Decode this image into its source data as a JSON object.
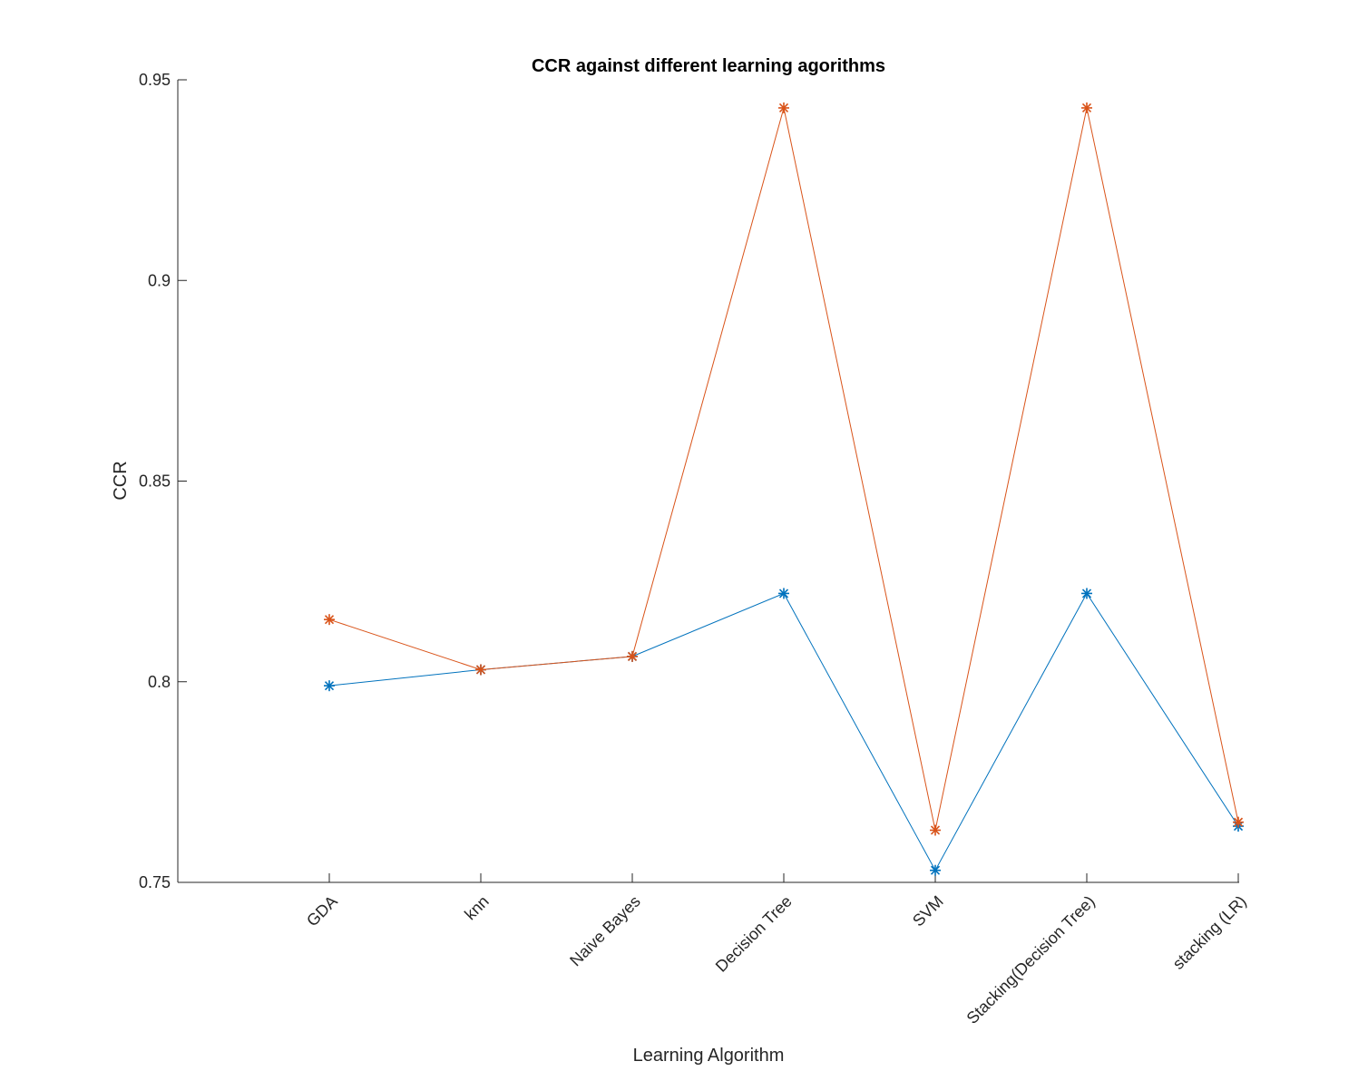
{
  "chart_data": {
    "type": "line",
    "title": "CCR against different learning agorithms",
    "xlabel": "Learning Algorithm",
    "ylabel": "CCR",
    "categories": [
      "GDA",
      "knn",
      "Naive Bayes",
      "Decision Tree",
      "SVM",
      "Stacking(Decision Tree)",
      "stacking (LR)"
    ],
    "ylim": [
      0.75,
      0.95
    ],
    "yticks": [
      0.75,
      0.8,
      0.85,
      0.9,
      0.95
    ],
    "ytick_labels": [
      "0.75",
      "0.8",
      "0.85",
      "0.9",
      "0.95"
    ],
    "grid": false,
    "marker": "asterisk",
    "series": [
      {
        "color": "#0072BD",
        "values": [
          0.799,
          0.803,
          0.8063,
          0.822,
          0.753,
          0.822,
          0.764
        ]
      },
      {
        "color": "#D95319",
        "values": [
          0.8155,
          0.803,
          0.8063,
          0.943,
          0.763,
          0.943,
          0.765
        ]
      }
    ]
  }
}
